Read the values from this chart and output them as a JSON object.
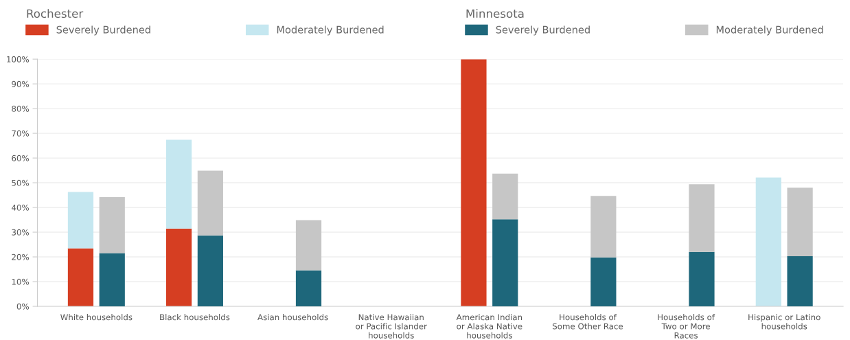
{
  "chart_data": [
    {
      "type": "bar",
      "stacked": true,
      "legend_title": "Rochester",
      "categories": [
        "White households",
        "Black households",
        "Asian households",
        "Native Hawaiian\nor Pacific Islander\nhouseholds",
        "American Indian\nor Alaska Native\nhouseholds",
        "Households of\nSome Other Race",
        "Households of\nTwo or More\nRaces",
        "Hispanic or Latino\nhouseholds"
      ],
      "series": [
        {
          "name": "Severely Burdened",
          "color": "#d63e22",
          "values": [
            23.5,
            31.5,
            null,
            null,
            100,
            null,
            null,
            null
          ]
        },
        {
          "name": "Moderately Burdened",
          "color": "#c5e7f0",
          "values": [
            22.8,
            35.9,
            null,
            null,
            null,
            null,
            null,
            52.1
          ]
        }
      ],
      "ylim": [
        0,
        100
      ],
      "yticks": [
        {
          "value": 0,
          "label": "0%"
        },
        {
          "value": 10,
          "label": "10%"
        },
        {
          "value": 20,
          "label": "20%"
        },
        {
          "value": 30,
          "label": "30%"
        },
        {
          "value": 40,
          "label": "40%"
        },
        {
          "value": 50,
          "label": "50%"
        },
        {
          "value": 60,
          "label": "60%"
        },
        {
          "value": 70,
          "label": "70%"
        },
        {
          "value": 80,
          "label": "80%"
        },
        {
          "value": 90,
          "label": "90%"
        },
        {
          "value": 100,
          "label": "100%"
        }
      ],
      "grid": "y",
      "legend": "top left"
    },
    {
      "type": "bar",
      "stacked": true,
      "legend_title": "Minnesota",
      "categories": [
        null,
        null,
        null,
        null,
        null,
        null,
        null,
        null
      ],
      "series": [
        {
          "name": "Severely Burdened",
          "color": "#1e677b",
          "values": [
            21.5,
            28.7,
            14.6,
            null,
            35.2,
            19.8,
            22.0,
            20.3
          ]
        },
        {
          "name": "Moderately Burdened",
          "color": "#c6c6c6",
          "values": [
            22.7,
            26.2,
            20.3,
            null,
            18.5,
            24.9,
            27.4,
            27.7
          ]
        }
      ],
      "ylim": [
        0,
        100
      ],
      "legend": "top right"
    }
  ]
}
